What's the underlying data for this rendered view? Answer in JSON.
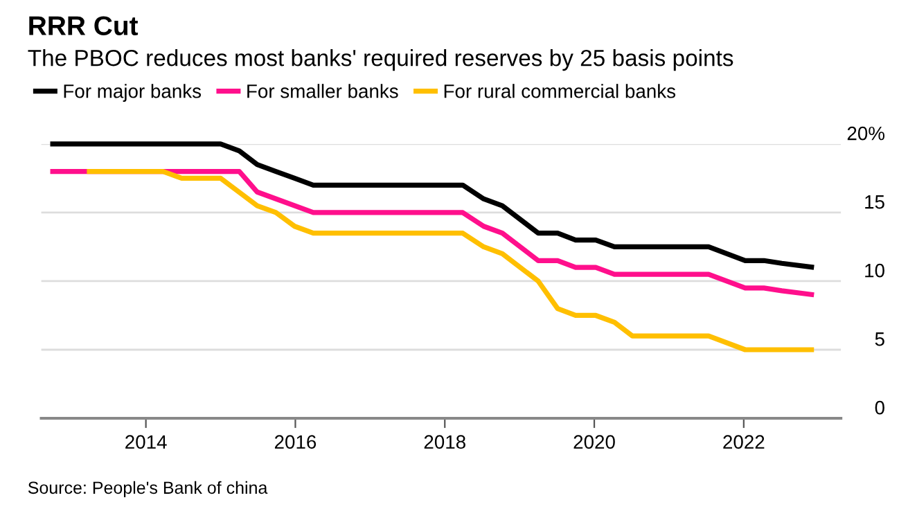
{
  "chart_data": {
    "type": "line",
    "title": "RRR Cut",
    "subtitle": "The PBOC reduces most banks' required reserves by 25 basis points",
    "series": [
      {
        "name": "For major banks",
        "color": "#000000",
        "x": [
          2012.72,
          2015.0,
          2015.25,
          2015.49,
          2015.74,
          2015.99,
          2016.24,
          2018.24,
          2018.52,
          2018.77,
          2019.25,
          2019.51,
          2019.75,
          2020.02,
          2020.27,
          2021.53,
          2022.02,
          2022.27,
          2022.51,
          2022.94
        ],
        "values": [
          20,
          20,
          19.5,
          18.5,
          18,
          17.5,
          17,
          17,
          16,
          15.5,
          13.5,
          13.5,
          13,
          13,
          12.5,
          12.5,
          11.5,
          11.5,
          11.3,
          11
        ]
      },
      {
        "name": "For smaller banks",
        "color": "#ff0f8c",
        "x": [
          2012.72,
          2015.25,
          2015.49,
          2016.24,
          2018.24,
          2018.52,
          2018.77,
          2019.25,
          2019.51,
          2019.75,
          2020.02,
          2020.27,
          2021.53,
          2022.02,
          2022.27,
          2022.51,
          2022.94
        ],
        "values": [
          18,
          18,
          16.5,
          15,
          15,
          14,
          13.5,
          11.5,
          11.5,
          11,
          11,
          10.5,
          10.5,
          9.5,
          9.5,
          9.3,
          9
        ]
      },
      {
        "name": "For rural commercial banks",
        "color": "#ffbf00",
        "x": [
          2013.21,
          2014.23,
          2014.48,
          2015.0,
          2015.49,
          2015.74,
          2015.99,
          2016.24,
          2018.24,
          2018.52,
          2018.77,
          2019.25,
          2019.51,
          2019.75,
          2020.02,
          2020.27,
          2020.51,
          2021.53,
          2022.02,
          2022.94
        ],
        "values": [
          18,
          18,
          17.5,
          17.5,
          15.5,
          15,
          14,
          13.5,
          13.5,
          12.5,
          12,
          10,
          8,
          7.5,
          7.5,
          7,
          6,
          6,
          5,
          5
        ]
      }
    ],
    "xlim": [
      2012.6,
      2023.3
    ],
    "xticks": [
      2014,
      2016,
      2018,
      2020,
      2022
    ],
    "ylim": [
      0,
      20
    ],
    "yticks": [
      0,
      5,
      10,
      15,
      {
        "value": 20,
        "label": "20%"
      }
    ],
    "grid": "y",
    "legend": "top left",
    "line_style": "solid",
    "marker": "none",
    "annotations": [
      "Source: People's Bank of china"
    ]
  }
}
